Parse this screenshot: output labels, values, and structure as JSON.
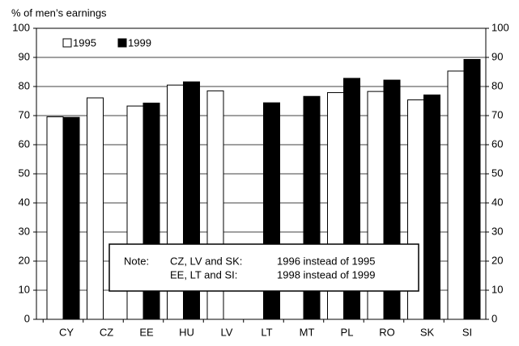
{
  "chart_data": {
    "type": "bar",
    "y_label": "% of men’s earnings",
    "categories": [
      "CY",
      "CZ",
      "EE",
      "HU",
      "LV",
      "LT",
      "MT",
      "PL",
      "RO",
      "SK",
      "SI"
    ],
    "series": [
      {
        "name": "1995",
        "color": "#ffffff",
        "values": [
          69.6,
          76.1,
          73.3,
          80.5,
          78.5,
          null,
          null,
          77.9,
          78.3,
          75.4,
          85.3
        ]
      },
      {
        "name": "1999",
        "color": "#000000",
        "values": [
          69.4,
          null,
          74.3,
          81.6,
          null,
          74.4,
          76.6,
          82.8,
          82.2,
          77.1,
          89.3
        ]
      }
    ],
    "ylim": [
      0,
      100
    ],
    "yticks": [
      0,
      10,
      20,
      30,
      40,
      50,
      60,
      70,
      80,
      90,
      100
    ],
    "y2lim": [
      0,
      100
    ],
    "y2ticks": [
      0,
      10,
      20,
      30,
      40,
      50,
      60,
      70,
      80,
      90,
      100
    ],
    "grid": true,
    "legend": "top-left",
    "note": {
      "label": "Note:",
      "rows": [
        [
          "CZ, LV and SK:",
          "1996 instead of 1995"
        ],
        [
          "EE, LT and SI:",
          "1998 instead of 1999"
        ]
      ]
    }
  }
}
